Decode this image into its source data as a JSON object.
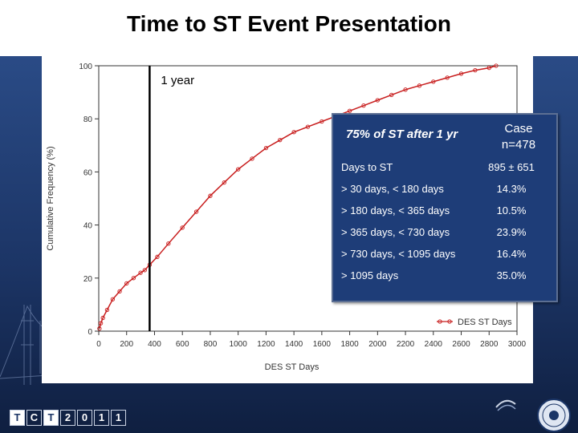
{
  "slide": {
    "title": "Time to ST Event Presentation"
  },
  "chart_data": {
    "type": "line",
    "title": "",
    "xlabel": "DES ST Days",
    "ylabel": "Cumulative Frequency (%)",
    "xlim": [
      0,
      3000
    ],
    "ylim": [
      0,
      100
    ],
    "xticks": [
      "0",
      "200",
      "400",
      "600",
      "800",
      "1000",
      "1200",
      "1400",
      "1600",
      "1800",
      "2000",
      "2200",
      "2400",
      "2600",
      "2800",
      "3000"
    ],
    "yticks": [
      "0",
      "20",
      "40",
      "60",
      "80",
      "100"
    ],
    "grid": false,
    "legend_position": "bottom-right",
    "series": [
      {
        "name": "DES ST Days",
        "color": "#c81e1e",
        "marker": "open-circle",
        "x": [
          5,
          15,
          30,
          60,
          100,
          150,
          200,
          250,
          300,
          330,
          365,
          420,
          500,
          600,
          700,
          800,
          900,
          1000,
          1100,
          1200,
          1300,
          1400,
          1500,
          1600,
          1700,
          1800,
          1900,
          2000,
          2100,
          2200,
          2300,
          2400,
          2500,
          2600,
          2700,
          2800,
          2850
        ],
        "y": [
          1,
          3,
          5,
          8,
          12,
          15,
          18,
          20,
          22,
          23,
          25,
          28,
          33,
          39,
          45,
          51,
          56,
          61,
          65,
          69,
          72,
          75,
          77,
          79,
          81,
          83,
          85,
          87,
          89,
          91,
          92.5,
          94,
          95.5,
          97,
          98.3,
          99.2,
          100
        ]
      }
    ],
    "annotations": [
      {
        "label": "1 year",
        "x": 365,
        "type": "vertical-line"
      }
    ]
  },
  "stats": {
    "callout": "75% of ST after 1 yr",
    "case_head": [
      "Case",
      "n=478"
    ],
    "rows": [
      {
        "label": "Days to ST",
        "value": "895 ± 651"
      },
      {
        "label": "> 30 days, < 180 days",
        "value": "14.3%"
      },
      {
        "label": "> 180 days, < 365 days",
        "value": "10.5%"
      },
      {
        "label": "> 365 days, < 730 days",
        "value": "23.9%"
      },
      {
        "label": "> 730 days, < 1095 days",
        "value": "16.4%"
      },
      {
        "label": "> 1095 days",
        "value": "35.0%"
      }
    ]
  },
  "footer": {
    "conference_logo": [
      "T",
      "C",
      "T",
      "2",
      "0",
      "1",
      "1"
    ],
    "logo_icons": [
      "conference-logo-icon",
      "institution-logo-icon",
      "university-seal-icon"
    ]
  }
}
